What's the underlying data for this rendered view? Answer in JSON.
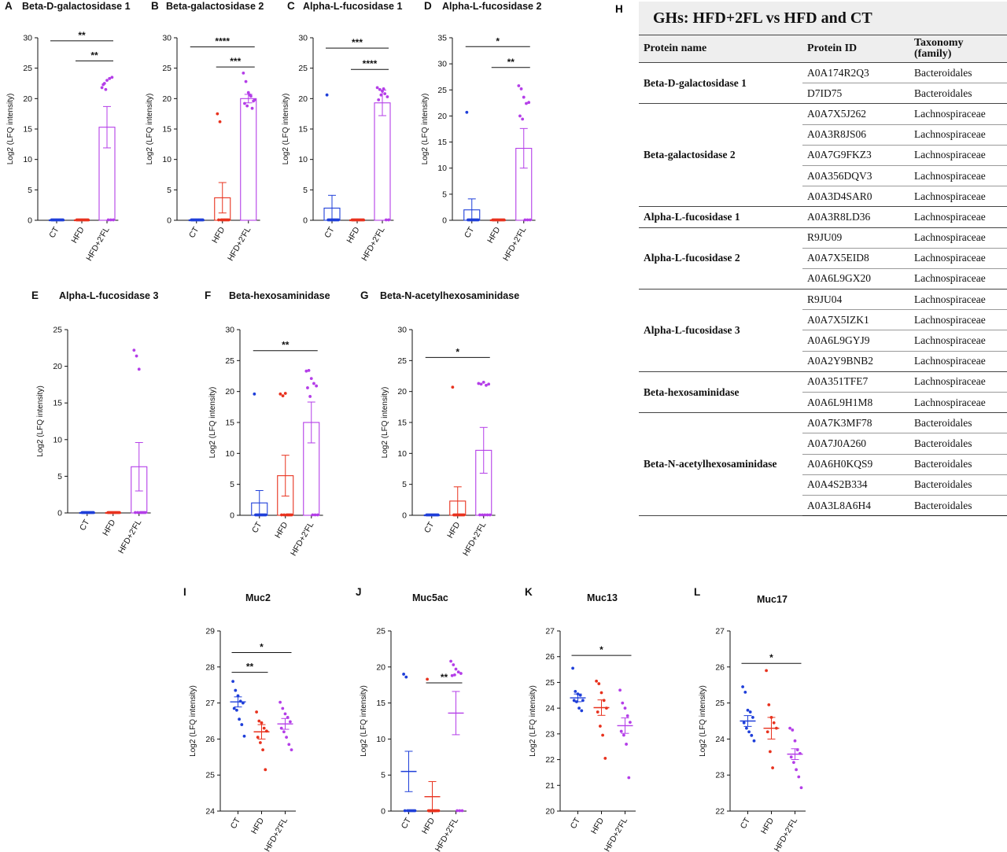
{
  "groups": [
    "CT",
    "HFD",
    "HFD+2'FL"
  ],
  "colors": {
    "CT": "#1f3fd9",
    "HFD": "#e8321e",
    "HFD+2'FL": "#b43ee8"
  },
  "chart_data": [
    {
      "panel": "A",
      "type": "bar",
      "title": "Beta-D-galactosidase 1",
      "ylabel": "Log2 (LFQ intensity)",
      "ylim": [
        0,
        30
      ],
      "yticks": [
        0,
        5,
        10,
        15,
        20,
        25,
        30
      ],
      "categories": [
        "CT",
        "HFD",
        "HFD+2'FL"
      ],
      "values": [
        0,
        0,
        15.3
      ],
      "sem": [
        0,
        0,
        3.4
      ],
      "points": [
        [
          0,
          0,
          0,
          0,
          0,
          0,
          0,
          0,
          0,
          0
        ],
        [
          0,
          0,
          0,
          0,
          0,
          0,
          0,
          0,
          0,
          0
        ],
        [
          21.8,
          22.5,
          23.0,
          23.3,
          23.5,
          22.3,
          21.5,
          0,
          0,
          0
        ]
      ],
      "significance": [
        {
          "label": "**",
          "from": 0,
          "to": 2,
          "y": 29.5
        },
        {
          "label": "**",
          "from": 1,
          "to": 2,
          "y": 26.2
        }
      ]
    },
    {
      "panel": "B",
      "type": "bar",
      "title": "Beta-galactosidase 2",
      "ylabel": "Log2 (LFQ intensity)",
      "ylim": [
        0,
        30
      ],
      "yticks": [
        0,
        5,
        10,
        15,
        20,
        25,
        30
      ],
      "categories": [
        "CT",
        "HFD",
        "HFD+2'FL"
      ],
      "values": [
        0,
        3.7,
        20
      ],
      "sem": [
        0,
        2.5,
        0.7
      ],
      "points": [
        [
          0,
          0,
          0,
          0,
          0,
          0,
          0,
          0,
          0,
          0
        ],
        [
          17.5,
          16.2,
          0,
          0,
          0,
          0,
          0,
          0,
          0,
          0
        ],
        [
          24.2,
          22.8,
          21.0,
          20.4,
          19.6,
          19.2,
          18.8,
          20.6,
          18.4,
          19.8
        ]
      ],
      "significance": [
        {
          "label": "****",
          "from": 0,
          "to": 2,
          "y": 28.5
        },
        {
          "label": "***",
          "from": 1,
          "to": 2,
          "y": 25.2
        }
      ]
    },
    {
      "panel": "C",
      "type": "bar",
      "title": "Alpha-L-fucosidase 1",
      "ylabel": "Log2 (LFQ intensity)",
      "ylim": [
        0,
        30
      ],
      "yticks": [
        0,
        5,
        10,
        15,
        20,
        25,
        30
      ],
      "categories": [
        "CT",
        "HFD",
        "HFD+2'FL"
      ],
      "values": [
        2,
        0,
        19.3
      ],
      "sem": [
        2.1,
        0,
        2.1
      ],
      "points": [
        [
          20.6,
          0,
          0,
          0,
          0,
          0,
          0,
          0,
          0,
          0
        ],
        [
          0,
          0,
          0,
          0,
          0,
          0,
          0,
          0,
          0,
          0
        ],
        [
          21.8,
          21.5,
          21.2,
          20.8,
          20.3,
          19.8,
          20.6,
          21.6,
          0,
          0
        ]
      ],
      "significance": [
        {
          "label": "***",
          "from": 0,
          "to": 2,
          "y": 28.3
        },
        {
          "label": "****",
          "from": 1,
          "to": 2,
          "y": 24.8
        }
      ]
    },
    {
      "panel": "D",
      "type": "bar",
      "title": "Alpha-L-fucosidase 2",
      "ylabel": "Log2 (LFQ intensity)",
      "ylim": [
        0,
        35
      ],
      "yticks": [
        0,
        5,
        10,
        15,
        20,
        25,
        30,
        35
      ],
      "categories": [
        "CT",
        "HFD",
        "HFD+2'FL"
      ],
      "values": [
        2,
        0,
        13.8
      ],
      "sem": [
        2.1,
        0,
        3.8
      ],
      "points": [
        [
          20.7,
          0,
          0,
          0,
          0,
          0,
          0,
          0,
          0,
          0
        ],
        [
          0,
          0,
          0,
          0,
          0,
          0,
          0,
          0,
          0,
          0
        ],
        [
          25.8,
          25.2,
          23.6,
          22.4,
          22.6,
          20.0,
          19.4,
          0,
          0,
          0
        ]
      ],
      "significance": [
        {
          "label": "*",
          "from": 0,
          "to": 2,
          "y": 33.3
        },
        {
          "label": "**",
          "from": 1,
          "to": 2,
          "y": 29.3
        }
      ]
    },
    {
      "panel": "E",
      "type": "bar",
      "title": "Alpha-L-fucosidase 3",
      "ylabel": "Log2 (LFQ intensity)",
      "ylim": [
        0,
        25
      ],
      "yticks": [
        0,
        5,
        10,
        15,
        20,
        25
      ],
      "categories": [
        "CT",
        "HFD",
        "HFD+2'FL"
      ],
      "values": [
        0,
        0,
        6.3
      ],
      "sem": [
        0,
        0,
        3.3
      ],
      "points": [
        [
          0,
          0,
          0,
          0,
          0,
          0,
          0,
          0,
          0,
          0
        ],
        [
          0,
          0,
          0,
          0,
          0,
          0,
          0,
          0,
          0,
          0
        ],
        [
          22.2,
          21.4,
          19.6,
          0,
          0,
          0,
          0,
          0,
          0,
          0
        ]
      ],
      "significance": []
    },
    {
      "panel": "F",
      "type": "bar",
      "title": "Beta-hexosaminidase",
      "ylabel": "Log2 (LFQ intensity)",
      "ylim": [
        0,
        30
      ],
      "yticks": [
        0,
        5,
        10,
        15,
        20,
        25,
        30
      ],
      "categories": [
        "CT",
        "HFD",
        "HFD+2'FL"
      ],
      "values": [
        2,
        6.4,
        15
      ],
      "sem": [
        2,
        3.3,
        3.3
      ],
      "points": [
        [
          19.6,
          0,
          0,
          0,
          0,
          0,
          0,
          0,
          0,
          0
        ],
        [
          19.6,
          19.3,
          19.7,
          0,
          0,
          0,
          0,
          0,
          0,
          0
        ],
        [
          23.3,
          23.4,
          22.1,
          21.3,
          20.9,
          20.6,
          19.2,
          0,
          0,
          0
        ]
      ],
      "significance": [
        {
          "label": "**",
          "from": 0,
          "to": 2,
          "y": 26.6
        }
      ]
    },
    {
      "panel": "G",
      "type": "bar",
      "title": "Beta-N-acetylhexosaminidase",
      "ylabel": "Log2 (LFQ intensity)",
      "ylim": [
        0,
        30
      ],
      "yticks": [
        0,
        5,
        10,
        15,
        20,
        25,
        30
      ],
      "categories": [
        "CT",
        "HFD",
        "HFD+2'FL"
      ],
      "values": [
        0,
        2.3,
        10.5
      ],
      "sem": [
        0,
        2.3,
        3.7
      ],
      "points": [
        [
          0,
          0,
          0,
          0,
          0,
          0,
          0,
          0,
          0,
          0
        ],
        [
          20.7,
          0,
          0,
          0,
          0,
          0,
          0,
          0,
          0,
          0
        ],
        [
          21.3,
          21.2,
          21.5,
          21.0,
          21.2,
          0,
          0,
          0,
          0,
          0
        ]
      ],
      "significance": [
        {
          "label": "*",
          "from": 0,
          "to": 2,
          "y": 25.5
        }
      ]
    },
    {
      "panel": "I",
      "type": "scatter",
      "title": "Muc2",
      "ylabel": "Log2 (LFQ intensity)",
      "ylim": [
        24,
        29
      ],
      "yticks": [
        24,
        25,
        26,
        27,
        28,
        29
      ],
      "categories": [
        "CT",
        "HFD",
        "HFD+2'FL"
      ],
      "means": [
        27.03,
        26.2,
        26.42
      ],
      "sem": [
        0.14,
        0.2,
        0.15
      ],
      "points": [
        [
          27.6,
          27.35,
          27.2,
          27.05,
          27.0,
          26.85,
          26.8,
          26.55,
          26.4,
          26.08
        ],
        [
          26.75,
          26.5,
          26.45,
          26.3,
          26.22,
          26.05,
          25.9,
          25.7,
          25.15
        ],
        [
          27.02,
          26.85,
          26.7,
          26.6,
          26.48,
          26.3,
          26.2,
          26.05,
          25.85,
          25.7
        ]
      ],
      "significance": [
        {
          "label": "*",
          "from": 0,
          "to": 2,
          "y": 28.4
        },
        {
          "label": "**",
          "from": 0,
          "to": 1,
          "y": 27.85
        }
      ]
    },
    {
      "panel": "J",
      "type": "scatter",
      "title": "Muc5ac",
      "ylabel": "Log2 (LFQ intensity)",
      "ylim": [
        0,
        25
      ],
      "yticks": [
        0,
        5,
        10,
        15,
        20,
        25
      ],
      "categories": [
        "CT",
        "HFD",
        "HFD+2'FL"
      ],
      "means": [
        5.5,
        2.0,
        13.6
      ],
      "sem": [
        2.8,
        2.1,
        3.0
      ],
      "points": [
        [
          19.0,
          18.6,
          0,
          0,
          0,
          0,
          0,
          0,
          0,
          0
        ],
        [
          18.3,
          0,
          0,
          0,
          0,
          0,
          0,
          0,
          0,
          0
        ],
        [
          20.8,
          20.3,
          19.7,
          19.3,
          19.1,
          18.8,
          18.9,
          0,
          0,
          0
        ]
      ],
      "significance": [
        {
          "label": "**",
          "from": 1,
          "to": 2,
          "y": 17.8
        }
      ]
    },
    {
      "panel": "K",
      "type": "scatter",
      "title": "Muc13",
      "ylabel": "Log2 (LFQ intensity)",
      "ylim": [
        20,
        27
      ],
      "yticks": [
        20,
        21,
        22,
        23,
        24,
        25,
        26,
        27
      ],
      "categories": [
        "CT",
        "HFD",
        "HFD+2'FL"
      ],
      "means": [
        24.4,
        24.02,
        23.32
      ],
      "sem": [
        0.15,
        0.3,
        0.3
      ],
      "points": [
        [
          25.55,
          24.65,
          24.55,
          24.5,
          24.3,
          24.3,
          24.25,
          24.0,
          23.9
        ],
        [
          25.05,
          24.95,
          24.6,
          24.3,
          24.0,
          23.85,
          23.3,
          22.95,
          22.05
        ],
        [
          24.7,
          24.2,
          24.0,
          23.7,
          23.45,
          23.1,
          22.95,
          22.6,
          21.3
        ]
      ],
      "significance": [
        {
          "label": "*",
          "from": 0,
          "to": 2,
          "y": 26.05
        }
      ]
    },
    {
      "panel": "L",
      "type": "scatter",
      "title": "Muc17",
      "ylabel": "Log2 (LFQ intensity)",
      "ylim": [
        22,
        27
      ],
      "yticks": [
        22,
        23,
        24,
        25,
        26,
        27
      ],
      "categories": [
        "CT",
        "HFD",
        "HFD+2'FL"
      ],
      "means": [
        24.5,
        24.3,
        23.58
      ],
      "sem": [
        0.15,
        0.3,
        0.15
      ],
      "points": [
        [
          25.45,
          25.3,
          24.8,
          24.75,
          24.6,
          24.45,
          24.3,
          24.2,
          24.1,
          23.95
        ],
        [
          25.9,
          24.95,
          24.6,
          24.45,
          24.3,
          24.2,
          23.65,
          23.2
        ],
        [
          24.3,
          24.25,
          23.95,
          23.7,
          23.6,
          23.5,
          23.35,
          23.15,
          22.95,
          22.65
        ]
      ],
      "significance": [
        {
          "label": "*",
          "from": 0,
          "to": 2,
          "y": 26.1
        }
      ]
    }
  ],
  "table": {
    "panel": "H",
    "title": "GHs: HFD+2FL vs HFD and CT",
    "headers": [
      "Protein name",
      "Protein ID",
      "Taxonomy\n(family)"
    ],
    "rows": [
      {
        "name": "Beta-D-galactosidase 1",
        "entries": [
          [
            "A0A174R2Q3",
            "Bacteroidales"
          ],
          [
            "D7ID75",
            "Bacteroidales"
          ]
        ]
      },
      {
        "name": "Beta-galactosidase 2",
        "entries": [
          [
            "A0A7X5J262",
            "Lachnospiraceae"
          ],
          [
            "A0A3R8JS06",
            "Lachnospiraceae"
          ],
          [
            "A0A7G9FKZ3",
            "Lachnospiraceae"
          ],
          [
            "A0A356DQV3",
            "Lachnospiraceae"
          ],
          [
            "A0A3D4SAR0",
            "Lachnospiraceae"
          ]
        ]
      },
      {
        "name": "Alpha-L-fucosidase 1",
        "entries": [
          [
            "A0A3R8LD36",
            "Lachnospiraceae"
          ]
        ]
      },
      {
        "name": "Alpha-L-fucosidase 2",
        "entries": [
          [
            "R9JU09",
            "Lachnospiraceae"
          ],
          [
            "A0A7X5EID8",
            "Lachnospiraceae"
          ],
          [
            "A0A6L9GX20",
            "Lachnospiraceae"
          ]
        ]
      },
      {
        "name": "Alpha-L-fucosidase 3",
        "entries": [
          [
            "R9JU04",
            "Lachnospiraceae"
          ],
          [
            "A0A7X5IZK1",
            "Lachnospiraceae"
          ],
          [
            "A0A6L9GYJ9",
            "Lachnospiraceae"
          ],
          [
            "A0A2Y9BNB2",
            "Lachnospiraceae"
          ]
        ]
      },
      {
        "name": "Beta-hexosaminidase",
        "entries": [
          [
            "A0A351TFE7",
            "Lachnospiraceae"
          ],
          [
            "A0A6L9H1M8",
            "Lachnospiraceae"
          ]
        ]
      },
      {
        "name": "Beta-N-acetylhexosaminidase",
        "entries": [
          [
            "A0A7K3MF78",
            "Bacteroidales"
          ],
          [
            "A0A7J0A260",
            "Bacteroidales"
          ],
          [
            "A0A6H0KQS9",
            "Bacteroidales"
          ],
          [
            "A0A4S2B334",
            "Bacteroidales"
          ],
          [
            "A0A3L8A6H4",
            "Bacteroidales"
          ]
        ]
      }
    ]
  }
}
